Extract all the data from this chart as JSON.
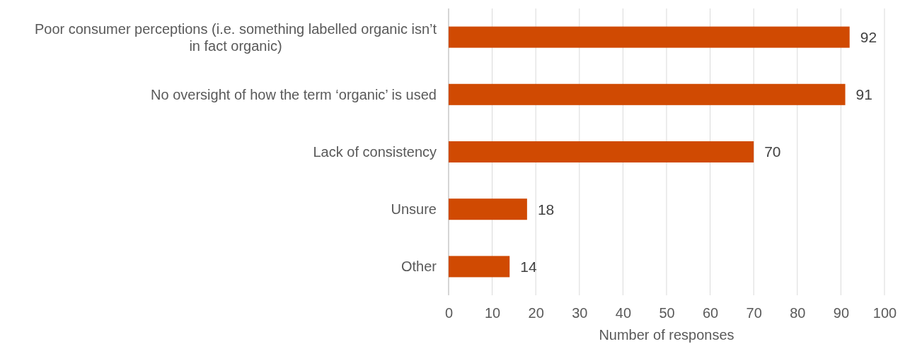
{
  "chart_data": {
    "type": "bar",
    "orientation": "horizontal",
    "categories": [
      "Poor consumer perceptions (i.e. something labelled organic isn’t in fact organic)",
      "No oversight of how the term ‘organic’ is used",
      "Lack of consistency",
      "Unsure",
      "Other"
    ],
    "values": [
      92,
      91,
      70,
      18,
      14
    ],
    "color": "#d04a02",
    "xlim": [
      0,
      100
    ],
    "xticks": [
      0,
      10,
      20,
      30,
      40,
      50,
      60,
      70,
      80,
      90,
      100
    ],
    "xlabel": "Number of responses",
    "grid": "x",
    "data_labels": true
  }
}
